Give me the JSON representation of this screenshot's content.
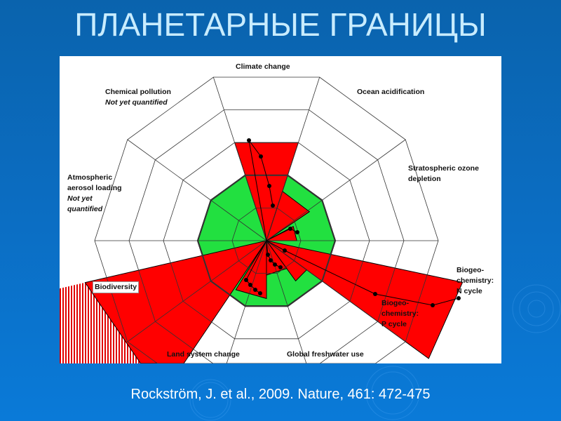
{
  "slide": {
    "title": "ПЛАНЕТАРНЫЕ ГРАНИЦЫ",
    "caption": "Rockström, J. et al., 2009. Nature, 461: 472-475"
  },
  "chart_data": {
    "type": "radar",
    "colors": {
      "safe_zone": "#22e040",
      "exceeded": "#ff0000",
      "grid": "#333333"
    },
    "boundary_value": 1,
    "rings": 5,
    "categories": [
      {
        "label": "Climate change",
        "value": 1.5
      },
      {
        "label": "Ocean acidification",
        "value": 0.75
      },
      {
        "label": "Stratospheric ozone depletion",
        "line1": "Stratospheric ozone",
        "line2": "depletion",
        "value": 0.45
      },
      {
        "label": "Biogeochemistry: N cycle",
        "line1": "Biogeo-",
        "line2": "chemistry:",
        "line3": "N cycle",
        "value": 3.0
      },
      {
        "label": "Biogeochemistry: P cycle",
        "line1": "Biogeo-",
        "line2": "chemistry:",
        "line3": "P cycle",
        "value": 0.75
      },
      {
        "label": "Global freshwater use",
        "value": 0.5
      },
      {
        "label": "Land system change",
        "value": 0.85
      },
      {
        "label": "Biodiversity",
        "value": 10,
        "beyond_scale": true
      },
      {
        "label": "Atmospheric aerosol loading",
        "line1": "Atmospheric",
        "line2": "aerosol loading",
        "note1": "Not yet",
        "note2": "quantified",
        "value": null
      },
      {
        "label": "Chemical pollution",
        "note": "Not yet quantified",
        "value": null
      }
    ]
  }
}
